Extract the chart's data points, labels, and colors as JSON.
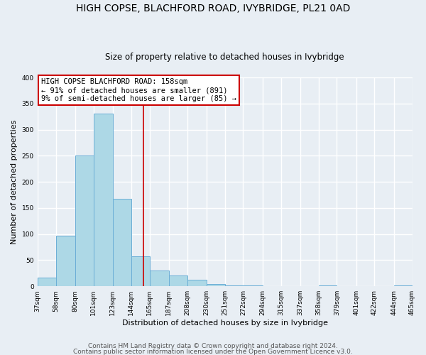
{
  "title": "HIGH COPSE, BLACHFORD ROAD, IVYBRIDGE, PL21 0AD",
  "subtitle": "Size of property relative to detached houses in Ivybridge",
  "xlabel": "Distribution of detached houses by size in Ivybridge",
  "ylabel": "Number of detached properties",
  "bar_edges": [
    37,
    58,
    80,
    101,
    123,
    144,
    165,
    187,
    208,
    230,
    251,
    272,
    294,
    315,
    337,
    358,
    379,
    401,
    422,
    444,
    465
  ],
  "bar_heights": [
    17,
    97,
    250,
    330,
    168,
    58,
    30,
    20,
    13,
    5,
    2,
    1,
    0,
    0,
    0,
    1,
    0,
    0,
    0,
    1
  ],
  "bar_color": "#add8e6",
  "bar_edge_color": "#6baed6",
  "vline_x": 158,
  "vline_color": "#cc0000",
  "annotation_box_text": "HIGH COPSE BLACHFORD ROAD: 158sqm\n← 91% of detached houses are smaller (891)\n9% of semi-detached houses are larger (85) →",
  "annotation_box_facecolor": "#ffffff",
  "annotation_box_edgecolor": "#cc0000",
  "ylim": [
    0,
    400
  ],
  "yticks": [
    0,
    50,
    100,
    150,
    200,
    250,
    300,
    350,
    400
  ],
  "footer_line1": "Contains HM Land Registry data © Crown copyright and database right 2024.",
  "footer_line2": "Contains public sector information licensed under the Open Government Licence v3.0.",
  "background_color": "#e8eef4",
  "plot_bg_color": "#e8eef4",
  "grid_color": "#ffffff",
  "title_fontsize": 10,
  "subtitle_fontsize": 8.5,
  "tick_label_fontsize": 6.5,
  "axis_label_fontsize": 8,
  "annotation_fontsize": 7.5,
  "footer_fontsize": 6.5
}
